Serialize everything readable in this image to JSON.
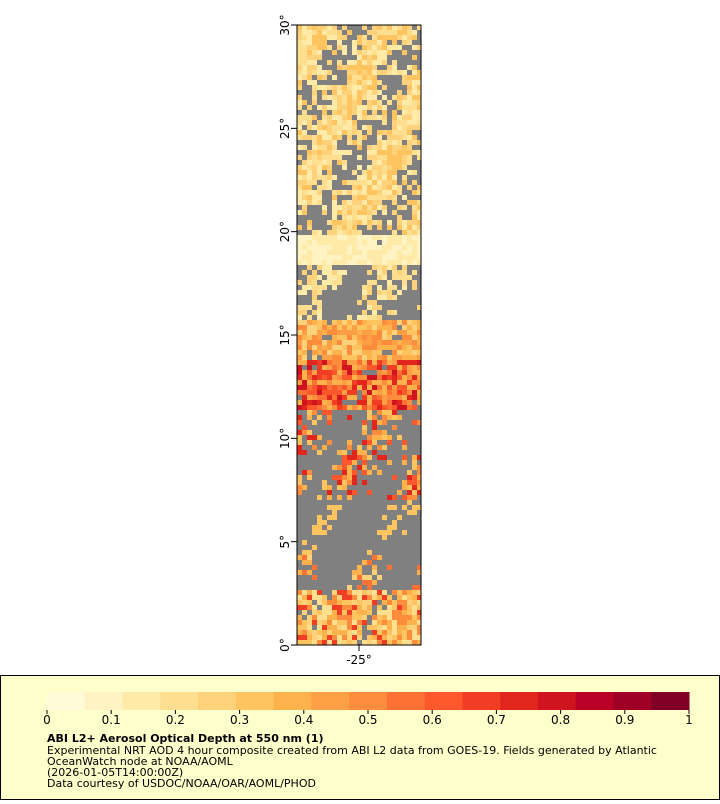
{
  "map": {
    "lat_range": [
      0,
      30
    ],
    "lon_range": [
      -28,
      -22
    ],
    "lat_ticks": [
      {
        "value": 0,
        "label": "0°"
      },
      {
        "value": 5,
        "label": "5°"
      },
      {
        "value": 10,
        "label": "10°"
      },
      {
        "value": 15,
        "label": "15°"
      },
      {
        "value": 20,
        "label": "20°"
      },
      {
        "value": 25,
        "label": "25°"
      },
      {
        "value": 30,
        "label": "30°"
      }
    ],
    "lon_ticks": [
      {
        "value": -25,
        "label": "-25°"
      }
    ]
  },
  "colorbar": {
    "range": [
      0,
      1
    ],
    "ticks": [
      0,
      0.1,
      0.2,
      0.3,
      0.4,
      0.5,
      0.6,
      0.7,
      0.8,
      0.9,
      1
    ],
    "colors": [
      "#fffbd9",
      "#fff3c4",
      "#ffeaa8",
      "#fedf90",
      "#fed27a",
      "#fec460",
      "#feb24c",
      "#fd9f44",
      "#fd8c3c",
      "#fc7234",
      "#fc582c",
      "#f03d24",
      "#e2261e",
      "#cf131f",
      "#b90026",
      "#a00026",
      "#800026"
    ],
    "title": "ABI L2+ Aerosol Optical Depth at 550 nm (1)",
    "caption": [
      "Experimental NRT AOD 4 hour composite created from ABI L2 data from GOES-19. Fields generated by Atlantic",
      "OceanWatch node at NOAA/AOML",
      "(2026-01-05T14:00:00Z)",
      "Data courtesy of USDOC/NOAA/OAR/AOML/PHOD"
    ]
  }
}
